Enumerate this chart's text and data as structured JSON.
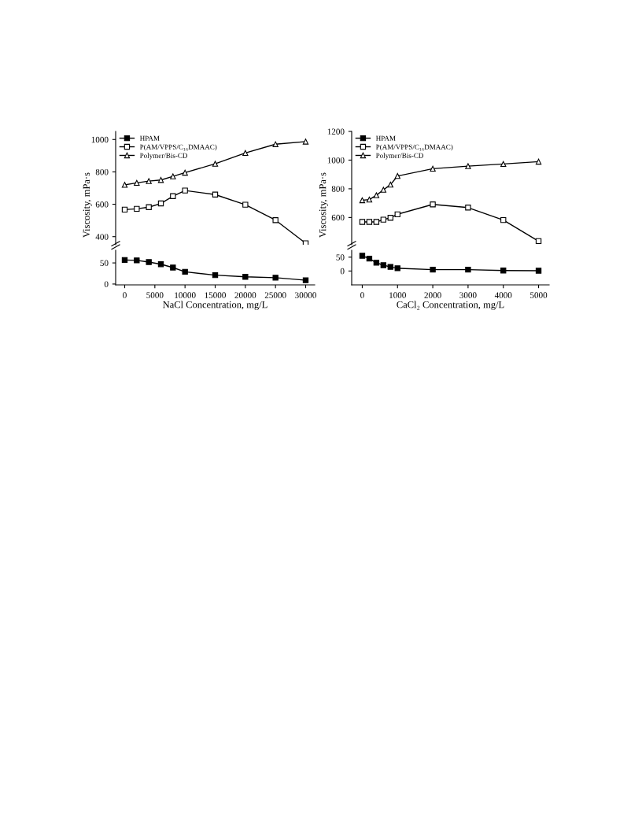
{
  "chart_data": [
    {
      "type": "line",
      "ylabel": "Viscosity, mPa·s",
      "x": [
        0,
        2000,
        4000,
        6000,
        8000,
        10000,
        15000,
        20000,
        25000,
        30000
      ],
      "ylim": [
        350,
        1050
      ],
      "yticks": [
        400,
        600,
        800,
        1000
      ],
      "tick_labels": "y",
      "legend": "top left",
      "line_style": "solid",
      "series": [
        {
          "name": "P(AM/VPPS/C₁₆DMAAC)",
          "color": "#000000",
          "marker": "square",
          "values": [
            567,
            572,
            582,
            605,
            650,
            685,
            660,
            597,
            502,
            359
          ]
        },
        {
          "name": "Polymer/Bis-CD",
          "color": "#000000",
          "marker": "triangle",
          "values": [
            720,
            732,
            743,
            750,
            772,
            795,
            850,
            917,
            971,
            987
          ]
        }
      ]
    },
    {
      "type": "line",
      "xlabel": "NaCl Concentration, mg/L",
      "x": [
        0,
        2000,
        4000,
        6000,
        8000,
        10000,
        15000,
        20000,
        25000,
        30000
      ],
      "xlim": [
        -1500,
        31500
      ],
      "xticks": [
        0,
        5000,
        10000,
        15000,
        20000,
        25000,
        30000
      ],
      "ylim": [
        -2,
        80
      ],
      "yticks": [
        0,
        50
      ],
      "line_style": "solid",
      "series": [
        {
          "name": "HPAM",
          "color": "#000000",
          "marker": "square",
          "values": [
            57,
            56,
            52,
            47,
            39,
            29,
            21,
            17,
            15,
            9
          ]
        }
      ]
    },
    {
      "type": "line",
      "ylabel": "Viscosity, mPa·s",
      "x": [
        0,
        200,
        400,
        600,
        800,
        1000,
        2000,
        3000,
        4000,
        5000
      ],
      "ylim": [
        410,
        1200
      ],
      "yticks": [
        600,
        800,
        1000,
        1200
      ],
      "tick_labels": "y",
      "legend": "top left",
      "line_style": "solid",
      "series": [
        {
          "name": "P(AM/VPPS/C₁₆DMAAC)",
          "color": "#000000",
          "marker": "square",
          "values": [
            569,
            569,
            569,
            585,
            598,
            622,
            691,
            669,
            582,
            435
          ]
        },
        {
          "name": "Polymer/Bis-CD",
          "color": "#000000",
          "marker": "triangle",
          "values": [
            720,
            725,
            755,
            793,
            829,
            889,
            940,
            958,
            973,
            989
          ]
        }
      ]
    },
    {
      "type": "line",
      "xlabel": "CaCl₂ Concentration, mg/L",
      "x": [
        0,
        200,
        400,
        600,
        800,
        1000,
        2000,
        3000,
        4000,
        5000
      ],
      "xlim": [
        -300,
        5300
      ],
      "xticks": [
        0,
        1000,
        2000,
        3000,
        4000,
        5000
      ],
      "ylim": [
        -50,
        75
      ],
      "yticks": [
        0,
        50
      ],
      "line_style": "solid",
      "series": [
        {
          "name": "HPAM",
          "color": "#000000",
          "marker": "square",
          "values": [
            55,
            45,
            30,
            21,
            15,
            10,
            5,
            5,
            2,
            1
          ]
        }
      ]
    }
  ]
}
